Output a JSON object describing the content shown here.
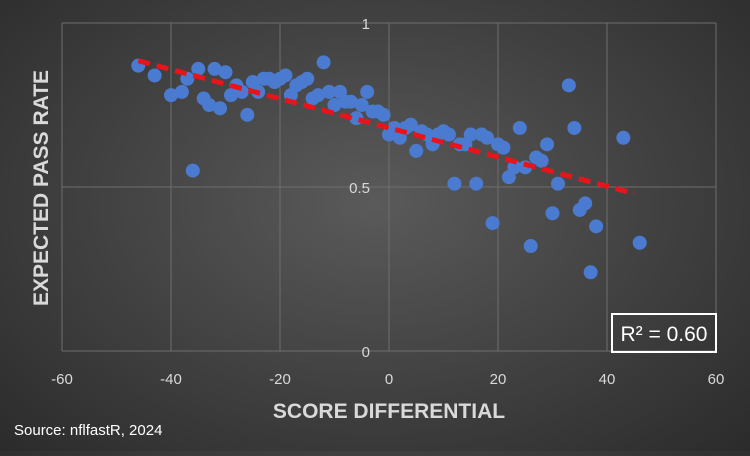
{
  "chart_data": {
    "type": "scatter",
    "title": "",
    "xlabel": "SCORE DIFFERENTIAL",
    "ylabel": "EXPECTED PASS RATE",
    "xlim": [
      -60,
      60
    ],
    "ylim": [
      0,
      1
    ],
    "x_ticks": [
      "-60",
      "-40",
      "-20",
      "0",
      "20",
      "40",
      "60"
    ],
    "y_ticks": [
      "0",
      "0.5",
      "1"
    ],
    "grid": true,
    "annotation": "R² = 0.60",
    "source": "Source: nflfastR, 2024",
    "colors": {
      "points": "#4a7bd0",
      "trendline": "#e8141c",
      "text": "#d9d9d9",
      "grid": "#6e6e6e"
    },
    "trendline": {
      "x": [
        -46,
        45
      ],
      "y": [
        0.885,
        0.48
      ]
    },
    "points": [
      [
        -46,
        0.87
      ],
      [
        -43,
        0.84
      ],
      [
        -40,
        0.78
      ],
      [
        -38,
        0.79
      ],
      [
        -37,
        0.83
      ],
      [
        -35,
        0.86
      ],
      [
        -34,
        0.77
      ],
      [
        -33,
        0.75
      ],
      [
        -32,
        0.86
      ],
      [
        -31,
        0.74
      ],
      [
        -30,
        0.85
      ],
      [
        -29,
        0.78
      ],
      [
        -28,
        0.81
      ],
      [
        -27,
        0.79
      ],
      [
        -26,
        0.72
      ],
      [
        -25,
        0.82
      ],
      [
        -24,
        0.79
      ],
      [
        -23,
        0.83
      ],
      [
        -22,
        0.83
      ],
      [
        -21,
        0.82
      ],
      [
        -20,
        0.83
      ],
      [
        -19,
        0.84
      ],
      [
        -18,
        0.78
      ],
      [
        -17,
        0.81
      ],
      [
        -16,
        0.82
      ],
      [
        -15,
        0.83
      ],
      [
        -14,
        0.77
      ],
      [
        -13,
        0.78
      ],
      [
        -12,
        0.88
      ],
      [
        -11,
        0.79
      ],
      [
        -10,
        0.75
      ],
      [
        -9,
        0.79
      ],
      [
        -8,
        0.76
      ],
      [
        -7,
        0.76
      ],
      [
        -6,
        0.71
      ],
      [
        -5,
        0.75
      ],
      [
        -4,
        0.79
      ],
      [
        -3,
        0.73
      ],
      [
        -2,
        0.73
      ],
      [
        -1,
        0.72
      ],
      [
        0,
        0.66
      ],
      [
        1,
        0.68
      ],
      [
        2,
        0.65
      ],
      [
        3,
        0.68
      ],
      [
        4,
        0.69
      ],
      [
        5,
        0.61
      ],
      [
        6,
        0.67
      ],
      [
        7,
        0.66
      ],
      [
        8,
        0.63
      ],
      [
        9,
        0.66
      ],
      [
        10,
        0.67
      ],
      [
        11,
        0.66
      ],
      [
        12,
        0.51
      ],
      [
        13,
        0.63
      ],
      [
        14,
        0.63
      ],
      [
        15,
        0.66
      ],
      [
        16,
        0.51
      ],
      [
        17,
        0.66
      ],
      [
        18,
        0.65
      ],
      [
        19,
        0.39
      ],
      [
        20,
        0.63
      ],
      [
        21,
        0.62
      ],
      [
        22,
        0.53
      ],
      [
        23,
        0.56
      ],
      [
        24,
        0.68
      ],
      [
        25,
        0.56
      ],
      [
        26,
        0.32
      ],
      [
        27,
        0.59
      ],
      [
        28,
        0.58
      ],
      [
        29,
        0.63
      ],
      [
        30,
        0.42
      ],
      [
        31,
        0.51
      ],
      [
        33,
        0.81
      ],
      [
        34,
        0.68
      ],
      [
        35,
        0.43
      ],
      [
        36,
        0.45
      ],
      [
        37,
        0.24
      ],
      [
        38,
        0.38
      ],
      [
        43,
        0.65
      ],
      [
        46,
        0.33
      ],
      [
        -36,
        0.55
      ]
    ]
  }
}
